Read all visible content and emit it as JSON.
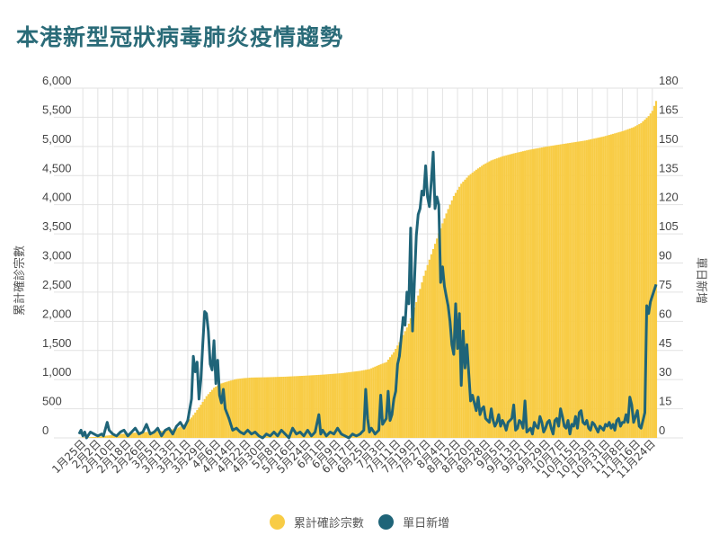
{
  "title": "本港新型冠狀病毒肺炎疫情趨勢",
  "colors": {
    "title": "#2a6b78",
    "cumulative": "#f8cc45",
    "daily": "#1f6478",
    "grid": "#e2e2e2",
    "axis_text": "#444444"
  },
  "legend": {
    "cumulative_label": "累計確診宗數",
    "daily_label": "單日新增"
  },
  "chart_data": {
    "type": "bar+line",
    "title": "本港新型冠狀病毒肺炎疫情趨勢",
    "ylabel_left": "累計確診宗數",
    "ylabel_right": "單日新增",
    "ylim_left": [
      0,
      6000
    ],
    "ylim_right": [
      0,
      180
    ],
    "yticks_left": [
      "0",
      "500",
      "1,000",
      "1,500",
      "2,000",
      "2,500",
      "3,000",
      "3,500",
      "4,000",
      "4,500",
      "5,000",
      "5,500",
      "6,000"
    ],
    "yticks_right": [
      "0",
      "15",
      "30",
      "45",
      "60",
      "75",
      "90",
      "105",
      "120",
      "135",
      "150",
      "165",
      "180"
    ],
    "xticks": [
      "1月25日",
      "2月2日",
      "2月10日",
      "2月18日",
      "2月26日",
      "3月5日",
      "3月13日",
      "3月21日",
      "3月29日",
      "4月6日",
      "4月14日",
      "4月22日",
      "4月30日",
      "5月8日",
      "5月16日",
      "5月24日",
      "6月1日",
      "6月9日",
      "6月17日",
      "6月25日",
      "7月3日",
      "7月11日",
      "7月19日",
      "7月27日",
      "8月4日",
      "8月12日",
      "8月20日",
      "8月28日",
      "9月5日",
      "9月13日",
      "9月21日",
      "9月29日",
      "10月7日",
      "10月15日",
      "10月23日",
      "10月31日",
      "11月8日",
      "11月16日",
      "11月24日"
    ],
    "grid": true,
    "legend_position": "bottom",
    "series": [
      {
        "name": "累計確診宗數",
        "type": "bar",
        "axis": "left",
        "anchors": [
          [
            0,
            2
          ],
          [
            10,
            20
          ],
          [
            20,
            60
          ],
          [
            30,
            90
          ],
          [
            40,
            110
          ],
          [
            47,
            130
          ],
          [
            52,
            160
          ],
          [
            56,
            230
          ],
          [
            60,
            350
          ],
          [
            64,
            520
          ],
          [
            68,
            715
          ],
          [
            72,
            860
          ],
          [
            76,
            935
          ],
          [
            80,
            975
          ],
          [
            84,
            1010
          ],
          [
            88,
            1025
          ],
          [
            92,
            1035
          ],
          [
            100,
            1040
          ],
          [
            110,
            1050
          ],
          [
            120,
            1066
          ],
          [
            130,
            1085
          ],
          [
            140,
            1110
          ],
          [
            150,
            1150
          ],
          [
            155,
            1180
          ],
          [
            160,
            1250
          ],
          [
            164,
            1300
          ],
          [
            168,
            1470
          ],
          [
            172,
            1700
          ],
          [
            176,
            1960
          ],
          [
            180,
            2330
          ],
          [
            184,
            2780
          ],
          [
            188,
            3150
          ],
          [
            192,
            3510
          ],
          [
            196,
            3850
          ],
          [
            200,
            4150
          ],
          [
            204,
            4360
          ],
          [
            208,
            4500
          ],
          [
            212,
            4600
          ],
          [
            216,
            4690
          ],
          [
            220,
            4760
          ],
          [
            226,
            4830
          ],
          [
            232,
            4880
          ],
          [
            240,
            4940
          ],
          [
            250,
            5000
          ],
          [
            260,
            5050
          ],
          [
            270,
            5100
          ],
          [
            280,
            5170
          ],
          [
            290,
            5260
          ],
          [
            296,
            5330
          ],
          [
            300,
            5400
          ],
          [
            304,
            5520
          ],
          [
            306,
            5610
          ],
          [
            308,
            5780
          ]
        ]
      },
      {
        "name": "單日新增",
        "type": "line",
        "axis": "right",
        "anchors": [
          [
            0,
            2
          ],
          [
            1,
            4
          ],
          [
            2,
            1
          ],
          [
            3,
            3
          ],
          [
            4,
            0
          ],
          [
            6,
            3
          ],
          [
            8,
            2
          ],
          [
            10,
            1
          ],
          [
            12,
            2
          ],
          [
            13,
            1
          ],
          [
            15,
            8
          ],
          [
            16,
            4
          ],
          [
            18,
            2
          ],
          [
            20,
            1
          ],
          [
            22,
            3
          ],
          [
            24,
            4
          ],
          [
            26,
            1
          ],
          [
            28,
            3
          ],
          [
            30,
            5
          ],
          [
            32,
            2
          ],
          [
            34,
            3
          ],
          [
            36,
            7
          ],
          [
            38,
            2
          ],
          [
            40,
            3
          ],
          [
            42,
            5
          ],
          [
            44,
            1
          ],
          [
            46,
            4
          ],
          [
            48,
            5
          ],
          [
            50,
            2
          ],
          [
            52,
            6
          ],
          [
            54,
            8
          ],
          [
            56,
            5
          ],
          [
            58,
            9
          ],
          [
            60,
            20
          ],
          [
            61,
            42
          ],
          [
            62,
            34
          ],
          [
            63,
            39
          ],
          [
            64,
            20
          ],
          [
            65,
            30
          ],
          [
            66,
            48
          ],
          [
            67,
            65
          ],
          [
            68,
            64
          ],
          [
            69,
            55
          ],
          [
            70,
            38
          ],
          [
            71,
            35
          ],
          [
            72,
            50
          ],
          [
            73,
            28
          ],
          [
            74,
            40
          ],
          [
            75,
            22
          ],
          [
            76,
            18
          ],
          [
            77,
            25
          ],
          [
            78,
            15
          ],
          [
            80,
            10
          ],
          [
            82,
            4
          ],
          [
            84,
            5
          ],
          [
            86,
            3
          ],
          [
            88,
            2
          ],
          [
            90,
            4
          ],
          [
            92,
            2
          ],
          [
            94,
            3
          ],
          [
            96,
            1
          ],
          [
            98,
            0
          ],
          [
            100,
            2
          ],
          [
            102,
            1
          ],
          [
            104,
            3
          ],
          [
            106,
            1
          ],
          [
            108,
            4
          ],
          [
            110,
            2
          ],
          [
            112,
            0
          ],
          [
            114,
            5
          ],
          [
            116,
            2
          ],
          [
            118,
            3
          ],
          [
            120,
            1
          ],
          [
            122,
            4
          ],
          [
            124,
            1
          ],
          [
            126,
            3
          ],
          [
            128,
            12
          ],
          [
            129,
            2
          ],
          [
            130,
            4
          ],
          [
            132,
            1
          ],
          [
            134,
            3
          ],
          [
            136,
            2
          ],
          [
            138,
            5
          ],
          [
            140,
            2
          ],
          [
            142,
            1
          ],
          [
            144,
            0
          ],
          [
            146,
            2
          ],
          [
            148,
            1
          ],
          [
            150,
            2
          ],
          [
            152,
            4
          ],
          [
            153,
            25
          ],
          [
            154,
            10
          ],
          [
            155,
            3
          ],
          [
            156,
            5
          ],
          [
            158,
            2
          ],
          [
            160,
            4
          ],
          [
            161,
            22
          ],
          [
            162,
            7
          ],
          [
            164,
            10
          ],
          [
            165,
            24
          ],
          [
            166,
            9
          ],
          [
            167,
            12
          ],
          [
            168,
            20
          ],
          [
            169,
            24
          ],
          [
            170,
            38
          ],
          [
            171,
            42
          ],
          [
            172,
            52
          ],
          [
            173,
            62
          ],
          [
            174,
            58
          ],
          [
            175,
            75
          ],
          [
            176,
            69
          ],
          [
            177,
            108
          ],
          [
            178,
            55
          ],
          [
            179,
            80
          ],
          [
            180,
            104
          ],
          [
            181,
            115
          ],
          [
            182,
            118
          ],
          [
            183,
            127
          ],
          [
            184,
            125
          ],
          [
            185,
            140
          ],
          [
            186,
            124
          ],
          [
            187,
            119
          ],
          [
            188,
            132
          ],
          [
            189,
            147
          ],
          [
            190,
            118
          ],
          [
            191,
            124
          ],
          [
            192,
            120
          ],
          [
            193,
            80
          ],
          [
            194,
            88
          ],
          [
            195,
            78
          ],
          [
            196,
            73
          ],
          [
            197,
            68
          ],
          [
            198,
            60
          ],
          [
            199,
            48
          ],
          [
            200,
            43
          ],
          [
            201,
            69
          ],
          [
            202,
            46
          ],
          [
            203,
            64
          ],
          [
            204,
            27
          ],
          [
            205,
            55
          ],
          [
            206,
            36
          ],
          [
            207,
            48
          ],
          [
            208,
            33
          ],
          [
            209,
            19
          ],
          [
            210,
            22
          ],
          [
            211,
            18
          ],
          [
            212,
            14
          ],
          [
            213,
            21
          ],
          [
            214,
            12
          ],
          [
            215,
            15
          ],
          [
            216,
            16
          ],
          [
            217,
            10
          ],
          [
            218,
            9
          ],
          [
            219,
            8
          ],
          [
            220,
            15
          ],
          [
            221,
            9
          ],
          [
            222,
            6
          ],
          [
            223,
            8
          ],
          [
            224,
            12
          ],
          [
            225,
            6
          ],
          [
            226,
            9
          ],
          [
            227,
            7
          ],
          [
            228,
            4
          ],
          [
            229,
            8
          ],
          [
            230,
            9
          ],
          [
            231,
            10
          ],
          [
            232,
            17
          ],
          [
            233,
            4
          ],
          [
            234,
            5
          ],
          [
            235,
            9
          ],
          [
            236,
            8
          ],
          [
            237,
            5
          ],
          [
            238,
            19
          ],
          [
            239,
            3
          ],
          [
            240,
            4
          ],
          [
            241,
            5
          ],
          [
            242,
            2
          ],
          [
            243,
            8
          ],
          [
            244,
            6
          ],
          [
            245,
            5
          ],
          [
            246,
            11
          ],
          [
            247,
            8
          ],
          [
            248,
            3
          ],
          [
            249,
            5
          ],
          [
            250,
            8
          ],
          [
            251,
            9
          ],
          [
            252,
            5
          ],
          [
            253,
            2
          ],
          [
            254,
            9
          ],
          [
            255,
            10
          ],
          [
            256,
            6
          ],
          [
            257,
            15
          ],
          [
            258,
            11
          ],
          [
            259,
            6
          ],
          [
            260,
            5
          ],
          [
            261,
            9
          ],
          [
            262,
            2
          ],
          [
            263,
            7
          ],
          [
            264,
            6
          ],
          [
            265,
            11
          ],
          [
            266,
            5
          ],
          [
            267,
            13
          ],
          [
            268,
            14
          ],
          [
            269,
            8
          ],
          [
            270,
            7
          ],
          [
            271,
            9
          ],
          [
            272,
            5
          ],
          [
            273,
            4
          ],
          [
            274,
            8
          ],
          [
            275,
            7
          ],
          [
            276,
            5
          ],
          [
            277,
            3
          ],
          [
            278,
            6
          ],
          [
            279,
            5
          ],
          [
            280,
            4
          ],
          [
            281,
            7
          ],
          [
            282,
            6
          ],
          [
            283,
            8
          ],
          [
            284,
            5
          ],
          [
            285,
            7
          ],
          [
            286,
            4
          ],
          [
            287,
            9
          ],
          [
            288,
            10
          ],
          [
            289,
            6
          ],
          [
            290,
            8
          ],
          [
            291,
            8
          ],
          [
            292,
            12
          ],
          [
            293,
            8
          ],
          [
            294,
            21
          ],
          [
            295,
            17
          ],
          [
            296,
            8
          ],
          [
            297,
            11
          ],
          [
            298,
            14
          ],
          [
            299,
            6
          ],
          [
            300,
            5
          ],
          [
            301,
            9
          ],
          [
            302,
            13
          ],
          [
            303,
            68
          ],
          [
            304,
            64
          ],
          [
            305,
            70
          ],
          [
            306,
            73
          ],
          [
            307,
            76
          ],
          [
            308,
            79
          ]
        ]
      }
    ]
  }
}
